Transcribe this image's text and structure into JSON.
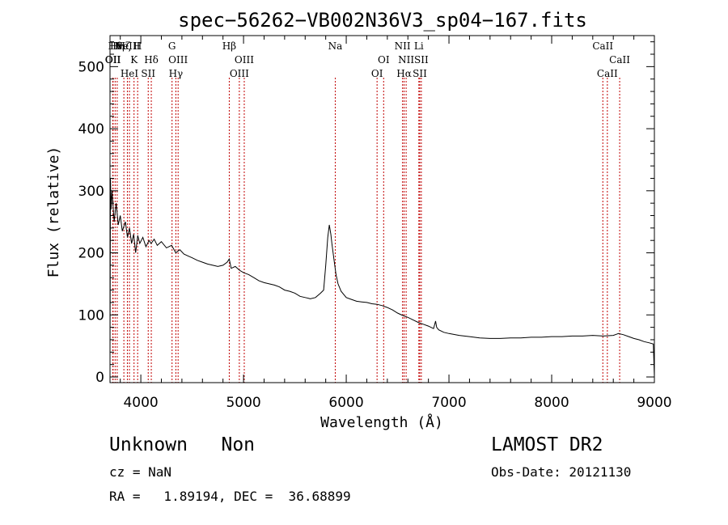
{
  "chart_data": {
    "type": "line",
    "title": "spec−56262−VB002N36V3_sp04−167.fits",
    "xlabel": "Wavelength (Å)",
    "ylabel": "Flux (relative)",
    "xlim": [
      3700,
      9000
    ],
    "ylim": [
      0,
      550
    ],
    "x_ticks": [
      4000,
      5000,
      6000,
      7000,
      8000,
      9000
    ],
    "y_ticks": [
      0,
      100,
      200,
      300,
      400,
      500
    ],
    "grid": false,
    "series": [
      {
        "x": [
          3700,
          3705,
          3710,
          3720,
          3740,
          3760,
          3780,
          3800,
          3820,
          3850,
          3870,
          3890,
          3910,
          3930,
          3950,
          3970,
          3990,
          4020,
          4050,
          4080,
          4100,
          4130,
          4160,
          4200,
          4250,
          4300,
          4340,
          4380,
          4420,
          4460,
          4500,
          4550,
          4600,
          4650,
          4700,
          4750,
          4800,
          4840,
          4861,
          4880,
          4920,
          4960,
          5000,
          5050,
          5100,
          5150,
          5200,
          5250,
          5300,
          5350,
          5400,
          5450,
          5500,
          5550,
          5600,
          5650,
          5700,
          5750,
          5780,
          5800,
          5820,
          5835,
          5850,
          5860,
          5880,
          5900,
          5920,
          5950,
          6000,
          6050,
          6100,
          6150,
          6200,
          6250,
          6300,
          6350,
          6400,
          6450,
          6500,
          6550,
          6600,
          6650,
          6700,
          6750,
          6800,
          6850,
          6870,
          6880,
          6900,
          6950,
          7000,
          7100,
          7200,
          7300,
          7400,
          7500,
          7600,
          7700,
          7800,
          7900,
          8000,
          8100,
          8200,
          8300,
          8400,
          8500,
          8600,
          8650,
          8700,
          8750,
          8800,
          8850,
          8900,
          8950,
          8990,
          9000
        ],
        "y": [
          40,
          320,
          270,
          300,
          250,
          280,
          245,
          260,
          235,
          250,
          225,
          240,
          215,
          230,
          200,
          228,
          215,
          225,
          210,
          220,
          215,
          222,
          212,
          218,
          208,
          212,
          200,
          205,
          198,
          195,
          192,
          188,
          185,
          182,
          180,
          178,
          180,
          185,
          190,
          175,
          178,
          172,
          168,
          165,
          160,
          155,
          152,
          150,
          148,
          145,
          140,
          138,
          135,
          130,
          128,
          126,
          128,
          135,
          140,
          180,
          225,
          245,
          230,
          215,
          190,
          165,
          150,
          138,
          128,
          125,
          122,
          121,
          120,
          118,
          117,
          115,
          112,
          108,
          103,
          99,
          96,
          92,
          88,
          85,
          82,
          78,
          90,
          80,
          76,
          72,
          70,
          67,
          65,
          63,
          62,
          62,
          63,
          63,
          64,
          64,
          65,
          65,
          66,
          66,
          67,
          66,
          67,
          70,
          68,
          65,
          62,
          60,
          57,
          55,
          53,
          0
        ]
      }
    ],
    "lines": [
      {
        "x": 3727,
        "labels": [
          "OII"
        ],
        "row": 1
      },
      {
        "x": 3730,
        "labels": [
          "OII"
        ],
        "row": 1
      },
      {
        "x": 3750,
        "labels": [
          "Hθ"
        ],
        "row": 0
      },
      {
        "x": 3770,
        "labels": [
          "Hη"
        ],
        "row": 0
      },
      {
        "x": 3835,
        "labels": [
          "Hζ"
        ],
        "row": 0
      },
      {
        "x": 3869,
        "labels": [
          "NeIII"
        ],
        "row": 0
      },
      {
        "x": 3889,
        "labels": [
          "HeI"
        ],
        "row": 2
      },
      {
        "x": 3934,
        "labels": [
          "K"
        ],
        "row": 1
      },
      {
        "x": 3969,
        "labels": [
          "H"
        ],
        "row": 0
      },
      {
        "x": 4072,
        "labels": [
          "SII"
        ],
        "row": 2
      },
      {
        "x": 4102,
        "labels": [
          "Hδ"
        ],
        "row": 1
      },
      {
        "x": 4304,
        "labels": [
          "G"
        ],
        "row": 0
      },
      {
        "x": 4341,
        "labels": [
          "Hγ"
        ],
        "row": 2
      },
      {
        "x": 4363,
        "labels": [
          "OIII"
        ],
        "row": 1
      },
      {
        "x": 4861,
        "labels": [
          "Hβ"
        ],
        "row": 0
      },
      {
        "x": 4959,
        "labels": [
          "OIII"
        ],
        "row": 2
      },
      {
        "x": 5007,
        "labels": [
          "OIII"
        ],
        "row": 1
      },
      {
        "x": 5893,
        "labels": [
          "Na"
        ],
        "row": 0
      },
      {
        "x": 6300,
        "labels": [
          "OI"
        ],
        "row": 2
      },
      {
        "x": 6364,
        "labels": [
          "OI"
        ],
        "row": 1
      },
      {
        "x": 6548,
        "labels": [
          "NII"
        ],
        "row": 0
      },
      {
        "x": 6563,
        "labels": [
          "Hα"
        ],
        "row": 2
      },
      {
        "x": 6583,
        "labels": [
          "NII"
        ],
        "row": 1
      },
      {
        "x": 6707,
        "labels": [
          "Li"
        ],
        "row": 0
      },
      {
        "x": 6716,
        "labels": [
          "SII"
        ],
        "row": 2
      },
      {
        "x": 6731,
        "labels": [
          "SII"
        ],
        "row": 1
      },
      {
        "x": 8498,
        "labels": [
          "CaII"
        ],
        "row": 0
      },
      {
        "x": 8542,
        "labels": [
          "CaII"
        ],
        "row": 2
      },
      {
        "x": 8662,
        "labels": [
          "CaII"
        ],
        "row": 1
      }
    ]
  },
  "info": {
    "object_class": "Unknown   Non",
    "survey": "LAMOST DR2",
    "redshift": "cz = NaN",
    "obs_date": "Obs-Date: 20121130",
    "coords": "RA =   1.89194, DEC =  36.68899"
  },
  "colors": {
    "axis": "#000000",
    "spectrum": "#000000",
    "line_marker": "#c00000"
  }
}
